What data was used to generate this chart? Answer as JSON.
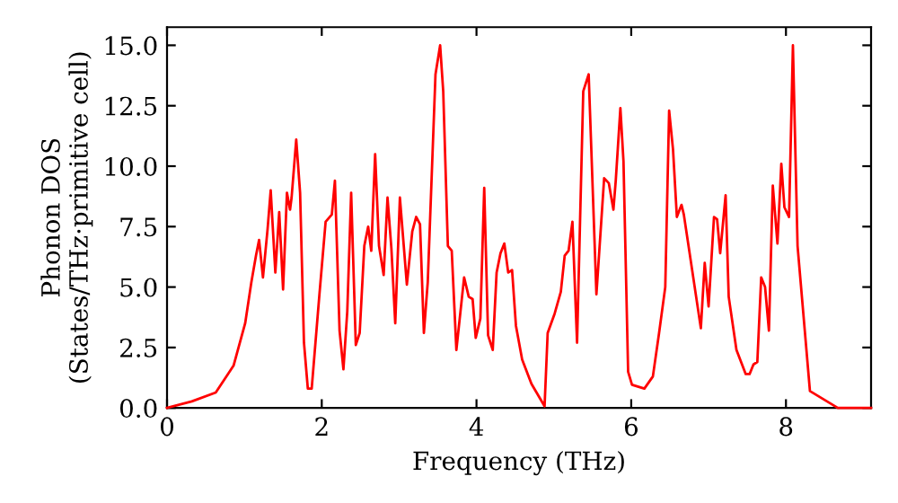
{
  "chart_data": {
    "type": "line",
    "xlabel": "Frequency (THz)",
    "ylabel": "Phonon DOS\n(States/THz·primitive cell)",
    "x": [
      0,
      0.32,
      0.63,
      0.86,
      1.01,
      1.09,
      1.15,
      1.19,
      1.24,
      1.3,
      1.34,
      1.4,
      1.45,
      1.5,
      1.55,
      1.59,
      1.61,
      1.67,
      1.72,
      1.77,
      1.82,
      1.87,
      1.97,
      2.05,
      2.13,
      2.17,
      2.23,
      2.28,
      2.33,
      2.38,
      2.44,
      2.49,
      2.55,
      2.6,
      2.64,
      2.69,
      2.74,
      2.8,
      2.85,
      2.9,
      2.95,
      3.01,
      3.1,
      3.17,
      3.22,
      3.27,
      3.32,
      3.37,
      3.47,
      3.53,
      3.57,
      3.63,
      3.68,
      3.74,
      3.84,
      3.9,
      3.95,
      3.99,
      4.05,
      4.1,
      4.15,
      4.21,
      4.26,
      4.31,
      4.36,
      4.41,
      4.46,
      4.51,
      4.59,
      4.71,
      4.88,
      4.92,
      5.01,
      5.09,
      5.14,
      5.19,
      5.24,
      5.3,
      5.38,
      5.45,
      5.55,
      5.65,
      5.71,
      5.77,
      5.8,
      5.86,
      5.9,
      5.96,
      6.01,
      6.17,
      6.28,
      6.36,
      6.44,
      6.49,
      6.54,
      6.59,
      6.65,
      6.68,
      6.9,
      6.95,
      7.0,
      7.07,
      7.11,
      7.15,
      7.22,
      7.26,
      7.36,
      7.48,
      7.53,
      7.58,
      7.63,
      7.68,
      7.73,
      7.78,
      7.83,
      7.89,
      7.94,
      7.98,
      8.04,
      8.09,
      8.15,
      8.31,
      8.67,
      9.1
    ],
    "series": [
      {
        "color": "#ff0000",
        "values": [
          0,
          0.27,
          0.64,
          1.75,
          3.5,
          5.2,
          6.3,
          6.95,
          5.4,
          7.4,
          9.0,
          5.6,
          8.1,
          4.9,
          8.9,
          8.2,
          8.7,
          11.1,
          8.9,
          2.7,
          0.8,
          0.8,
          4.7,
          7.7,
          8.0,
          9.4,
          3.2,
          1.6,
          4.0,
          8.9,
          2.6,
          3.1,
          6.7,
          7.5,
          6.5,
          10.5,
          6.7,
          5.5,
          8.7,
          6.6,
          3.5,
          8.7,
          5.1,
          7.3,
          7.9,
          7.6,
          3.1,
          5.2,
          13.8,
          15.0,
          13.1,
          6.7,
          6.5,
          2.4,
          5.4,
          4.6,
          4.5,
          2.9,
          3.7,
          9.1,
          3.0,
          2.4,
          5.6,
          6.4,
          6.8,
          5.6,
          5.7,
          3.4,
          2.0,
          1.0,
          0.07,
          3.1,
          3.9,
          4.8,
          6.3,
          6.5,
          7.7,
          2.7,
          13.1,
          13.8,
          4.7,
          9.5,
          9.3,
          8.2,
          9.4,
          12.4,
          10.2,
          1.5,
          0.96,
          0.8,
          1.3,
          3.1,
          5.0,
          12.3,
          10.7,
          7.9,
          8.4,
          8.0,
          3.3,
          6.0,
          4.2,
          7.9,
          7.8,
          6.4,
          8.8,
          4.6,
          2.4,
          1.4,
          1.4,
          1.8,
          1.9,
          5.4,
          5.0,
          3.2,
          9.2,
          6.8,
          10.1,
          8.3,
          7.9,
          15.0,
          6.7,
          0.7,
          0,
          0
        ]
      }
    ],
    "xlim": [
      0,
      9.1
    ],
    "ylim": [
      0,
      15.75
    ],
    "xticks": [
      0,
      2,
      4,
      6,
      8
    ],
    "yticks": [
      {
        "value": 0,
        "label": "0.0"
      },
      {
        "value": 2.5,
        "label": "2.5"
      },
      {
        "value": 5,
        "label": "5.0"
      },
      {
        "value": 7.5,
        "label": "7.5"
      },
      {
        "value": 10,
        "label": "10.0"
      },
      {
        "value": 12.5,
        "label": "12.5"
      },
      {
        "value": 15,
        "label": "15.0"
      }
    ],
    "grid": false,
    "marker": "none",
    "line_style": "solid"
  }
}
